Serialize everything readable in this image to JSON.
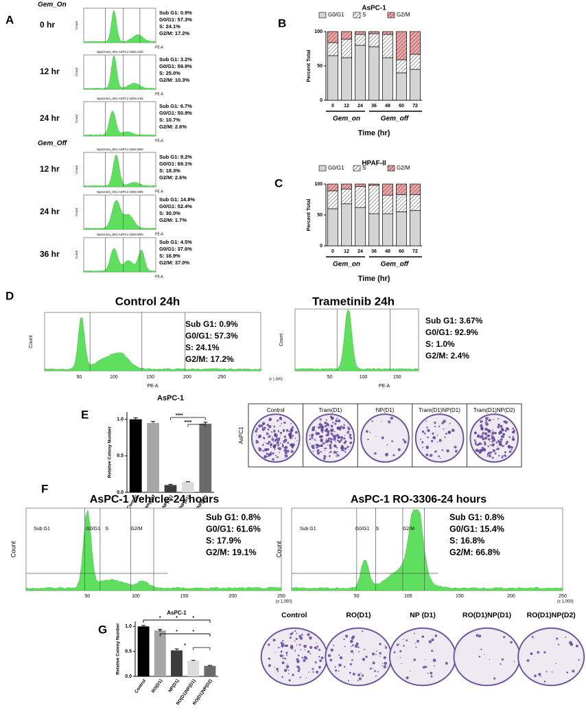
{
  "panel_labels": [
    "A",
    "B",
    "C",
    "D",
    "E",
    "F",
    "G"
  ],
  "panel_a": {
    "sections": [
      "Gem_On",
      "Gem_Off"
    ],
    "x_label": "PE-A",
    "y_label": "Count",
    "plots": [
      {
        "time": "0 hr",
        "stats": [
          "Sub G1: 0.9%",
          "G0/G1: 57.3%",
          "S:      24.1%",
          "G2/M: 17.2%"
        ]
      },
      {
        "time": "12 hr",
        "title": "Specimen_001-ASPC1 GEM 12hr",
        "stats": [
          "Sub G1: 3.2%",
          "G0/G1: 59.9%",
          "S:      25.0%",
          "G2/M: 10.3%"
        ]
      },
      {
        "time": "24 hr",
        "title": "Specimen_001-ASPC1 GEM 24hr",
        "stats": [
          "Sub G1: 6.7%",
          "G0/G1: 50.9%",
          "S:      10.7%",
          "G2/M: 2.6%"
        ]
      },
      {
        "time": "12 hr",
        "title": "Specimen_001-ASPC1 GEM 36hr",
        "stats": [
          "Sub G1: 9.2%",
          "G0/G1: 69.1%",
          "S:      18.3%",
          "G2/M: 2.6%"
        ]
      },
      {
        "time": "24 hr",
        "title": "Specimen_001-ASPC1 GEM 48hr",
        "stats": [
          "Sub G1: 14.8%",
          "G0/G1: 52.4%",
          "S:      30.0%",
          "G2/M: 1.7%"
        ]
      },
      {
        "time": "36 hr",
        "title": "Specimen_001-ASPC1 GEM 60hr",
        "stats": [
          "Sub G1: 4.5%",
          "G0/G1: 37.6%",
          "S:      16.9%",
          "G2/M: 37.0%"
        ]
      }
    ]
  },
  "chart_data": [
    {
      "type": "stacked_bar",
      "title": "AsPC-1",
      "y_label": "Percent Total",
      "x_label": "Time (hr)",
      "categories": [
        "0",
        "12",
        "24",
        "36",
        "48",
        "60",
        "72"
      ],
      "groups": [
        "Gem_on",
        "Gem_off"
      ],
      "ylim": [
        0,
        100
      ],
      "yticks": [
        0,
        50,
        100
      ],
      "series": [
        {
          "name": "G0/G1",
          "color": "#d4d4d4",
          "hatch": false,
          "values": [
            65,
            62,
            80,
            78,
            62,
            40,
            45
          ]
        },
        {
          "name": "S",
          "color": "#ffffff",
          "hatch": true,
          "values": [
            19,
            27,
            16,
            19,
            34,
            19,
            22
          ]
        },
        {
          "name": "G2/M",
          "color": "#f2a3a3",
          "hatch": true,
          "values": [
            16,
            11,
            4,
            3,
            4,
            41,
            33
          ]
        }
      ]
    },
    {
      "type": "stacked_bar",
      "title": "HPAF-II",
      "y_label": "Percent Total",
      "x_label": "Time (hr)",
      "categories": [
        "0",
        "12",
        "24",
        "36",
        "48",
        "60",
        "72"
      ],
      "groups": [
        "Gem_on",
        "Gem_off"
      ],
      "ylim": [
        0,
        100
      ],
      "yticks": [
        0,
        50,
        100
      ],
      "series": [
        {
          "name": "G0/G1",
          "color": "#d4d4d4",
          "hatch": false,
          "values": [
            60,
            68,
            62,
            52,
            52,
            55,
            57
          ]
        },
        {
          "name": "S",
          "color": "#ffffff",
          "hatch": true,
          "values": [
            29,
            24,
            34,
            46,
            30,
            28,
            26
          ]
        },
        {
          "name": "G2/M",
          "color": "#f2a3a3",
          "hatch": true,
          "values": [
            11,
            8,
            4,
            2,
            18,
            17,
            17
          ]
        }
      ]
    },
    {
      "type": "bar",
      "title": "AsPC-1",
      "y_label": "Relative Colony Number",
      "categories": [
        "Control",
        "Tram(D1)",
        "NP(D1)",
        "Tram(D1)NP(D1)",
        "Tram(D1)NP(D2)"
      ],
      "values": [
        1.0,
        0.95,
        0.1,
        0.14,
        0.94
      ],
      "errors": [
        0.02,
        0.02,
        0.01,
        0.005,
        0.02
      ],
      "colors": [
        "#000000",
        "#a6a6a6",
        "#3c3c3c",
        "#dcdcdc",
        "#6a6a6a"
      ],
      "ylim": [
        0,
        1.1
      ],
      "yticks": [
        {
          "value": 0,
          "label": "0.0"
        },
        0.5,
        {
          "value": 1,
          "label": "1.0"
        }
      ],
      "annotations": [
        "****",
        "****"
      ]
    },
    {
      "type": "bar",
      "title": "AsPC-1",
      "y_label": "Relative Colony Number",
      "categories": [
        "Control",
        "RO(D1)",
        "NP(D1)",
        "RO(D1)NP(D1)",
        "RO(D1)NP(D2)"
      ],
      "values": [
        1.0,
        0.92,
        0.52,
        0.31,
        0.21
      ],
      "errors": [
        0.02,
        0.02,
        0.03,
        0.01,
        0.01
      ],
      "colors": [
        "#000000",
        "#a6a6a6",
        "#3c3c3c",
        "#dcdcdc",
        "#6a6a6a"
      ],
      "ylim": [
        0,
        1.1
      ],
      "yticks": [
        {
          "value": 0,
          "label": "0.0"
        },
        0.5,
        {
          "value": 1,
          "label": "1.0"
        }
      ],
      "annotations": [
        "*",
        "*",
        "*",
        "*",
        "*",
        "*",
        "*"
      ]
    }
  ],
  "flow_d": [
    {
      "title": "Control 24h",
      "x_label": "PE-A",
      "y_label": "Count",
      "x_ticks": [
        "50",
        "100",
        "150",
        "200",
        "250"
      ],
      "x_unit": "(x 1,000)",
      "stats": [
        "Sub G1: 0.9%",
        "G0/G1: 57.3%",
        "S:        24.1%",
        "G2/M:  17.2%"
      ]
    },
    {
      "title": "Trametinib  24h",
      "x_label": "PE-A",
      "y_label": "Count",
      "x_ticks": [
        "50",
        "100",
        "150"
      ],
      "stats": [
        "Sub G1: 3.67%",
        "G0/G1: 92.9%",
        "S:         1.0%",
        "G2/M:   2.4%"
      ]
    }
  ],
  "plates_e": {
    "side_label": "AsPC1",
    "labels": [
      "Control",
      "Tram(D1)",
      "NP(D1)",
      "Tram(D1)NP(D1)",
      "Tram(D1)NP(D2)"
    ]
  },
  "flow_f": [
    {
      "title": "AsPC-1 Vehicle-24 hours",
      "y_label": "Count",
      "x_ticks": [
        "50",
        "100",
        "150",
        "200",
        "250"
      ],
      "x_unit": "(x 1,000)",
      "gates": [
        "Sub G1",
        "G0/G1",
        "S",
        "G2/M"
      ],
      "stats": [
        "Sub G1: 0.8%",
        "G0/G1: 61.6%",
        "S:        17.9%",
        "G2/M:  19.1%"
      ]
    },
    {
      "title": "AsPC-1 RO-3306-24 hours",
      "y_label": "Count",
      "x_ticks": [
        "50",
        "100",
        "150",
        "200",
        "250"
      ],
      "x_unit": "(x 1,000)",
      "gates": [
        "Sub G1",
        "G0/G1",
        "S",
        "G2/M"
      ],
      "stats": [
        "Sub G1: 0.8%",
        "G0/G1: 15.4%",
        "S:        16.8%",
        "G2/M:  66.8%"
      ]
    }
  ],
  "plates_g": {
    "labels": [
      "Control",
      "RO(D1)",
      "NP (D1)",
      "RO(D1)NP(D1)",
      "RO(D1)NP(D2)"
    ]
  }
}
